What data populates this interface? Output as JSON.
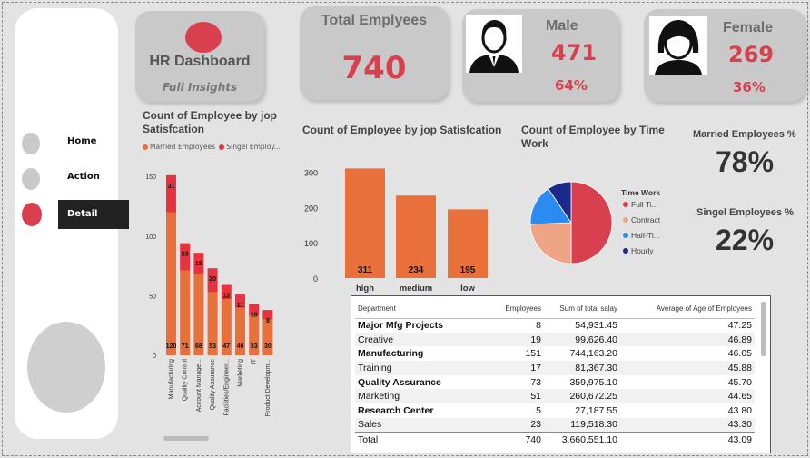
{
  "sidebar": {
    "items": [
      {
        "label": "Home"
      },
      {
        "label": "Action"
      },
      {
        "label": "Detail"
      }
    ]
  },
  "header": {
    "title": "HR Dashboard",
    "subtitle": "Full Insights",
    "total_label": "Total Emplyees",
    "total_value": "740",
    "male_label": "Male",
    "male_value": "471",
    "male_pct": "64%",
    "female_label": "Female",
    "female_value": "269",
    "female_pct": "36%"
  },
  "kpis": {
    "married_label": "Married Employees %",
    "married_value": "78%",
    "single_label": "Singel Employees %",
    "single_value": "22%"
  },
  "colors": {
    "accent_red": "#d9404f",
    "bar_orange": "#e8703a",
    "bar_red": "#e8333f",
    "pie_full_time": "#d9404f",
    "pie_contract": "#f0a486",
    "pie_half_time": "#2a8cf0",
    "pie_hourly": "#1b2a8a"
  },
  "chart_data": [
    {
      "type": "bar",
      "stacked": true,
      "title": "Count of Employee by jop Satisfcation",
      "legend": [
        "Married Employees",
        "Singel Employ..."
      ],
      "categories": [
        "Manufacturing",
        "Quality Control",
        "Account Manage...",
        "Quality Assurance",
        "Facilities/Engineer...",
        "Marketing",
        "IT",
        "Product Developm..."
      ],
      "series": [
        {
          "name": "Married Employees",
          "values": [
            120,
            71,
            68,
            53,
            47,
            40,
            33,
            30
          ]
        },
        {
          "name": "Singel Employ...",
          "values": [
            31,
            23,
            18,
            20,
            12,
            11,
            10,
            8
          ]
        }
      ],
      "yticks": [
        "0",
        "50",
        "100",
        "150"
      ],
      "ylim": [
        0,
        160
      ]
    },
    {
      "type": "bar",
      "title": "Count of Employee by jop Satisfcation",
      "categories": [
        "high",
        "medium",
        "low"
      ],
      "values": [
        311,
        234,
        195
      ],
      "yticks": [
        "0",
        "100",
        "200",
        "300"
      ],
      "ylim": [
        0,
        330
      ]
    },
    {
      "type": "pie",
      "title": "Count of Employee by Time Work",
      "legend_title": "Time Work",
      "labels": [
        "Full Ti...",
        "Contract",
        "Half-Ti...",
        "Hourly"
      ],
      "values": [
        370,
        180,
        120,
        70
      ]
    },
    {
      "type": "table",
      "columns": [
        "Department",
        "Employees",
        "Sum of total salay",
        "Average of Age of Employees"
      ],
      "rows": [
        [
          "Major Mfg Projects",
          "8",
          "54,931.45",
          "47.25"
        ],
        [
          "Creative",
          "19",
          "99,626.40",
          "46.89"
        ],
        [
          "Manufacturing",
          "151",
          "744,163.20",
          "46.05"
        ],
        [
          "Training",
          "17",
          "81,367.30",
          "45.88"
        ],
        [
          "Quality Assurance",
          "73",
          "359,975.10",
          "45.70"
        ],
        [
          "Marketing",
          "51",
          "260,672.25",
          "44.65"
        ],
        [
          "Research Center",
          "5",
          "27,187.55",
          "43.80"
        ],
        [
          "Sales",
          "23",
          "119,518.30",
          "43.30"
        ]
      ],
      "total": [
        "Total",
        "740",
        "3,660,551.10",
        "43.09"
      ]
    }
  ]
}
